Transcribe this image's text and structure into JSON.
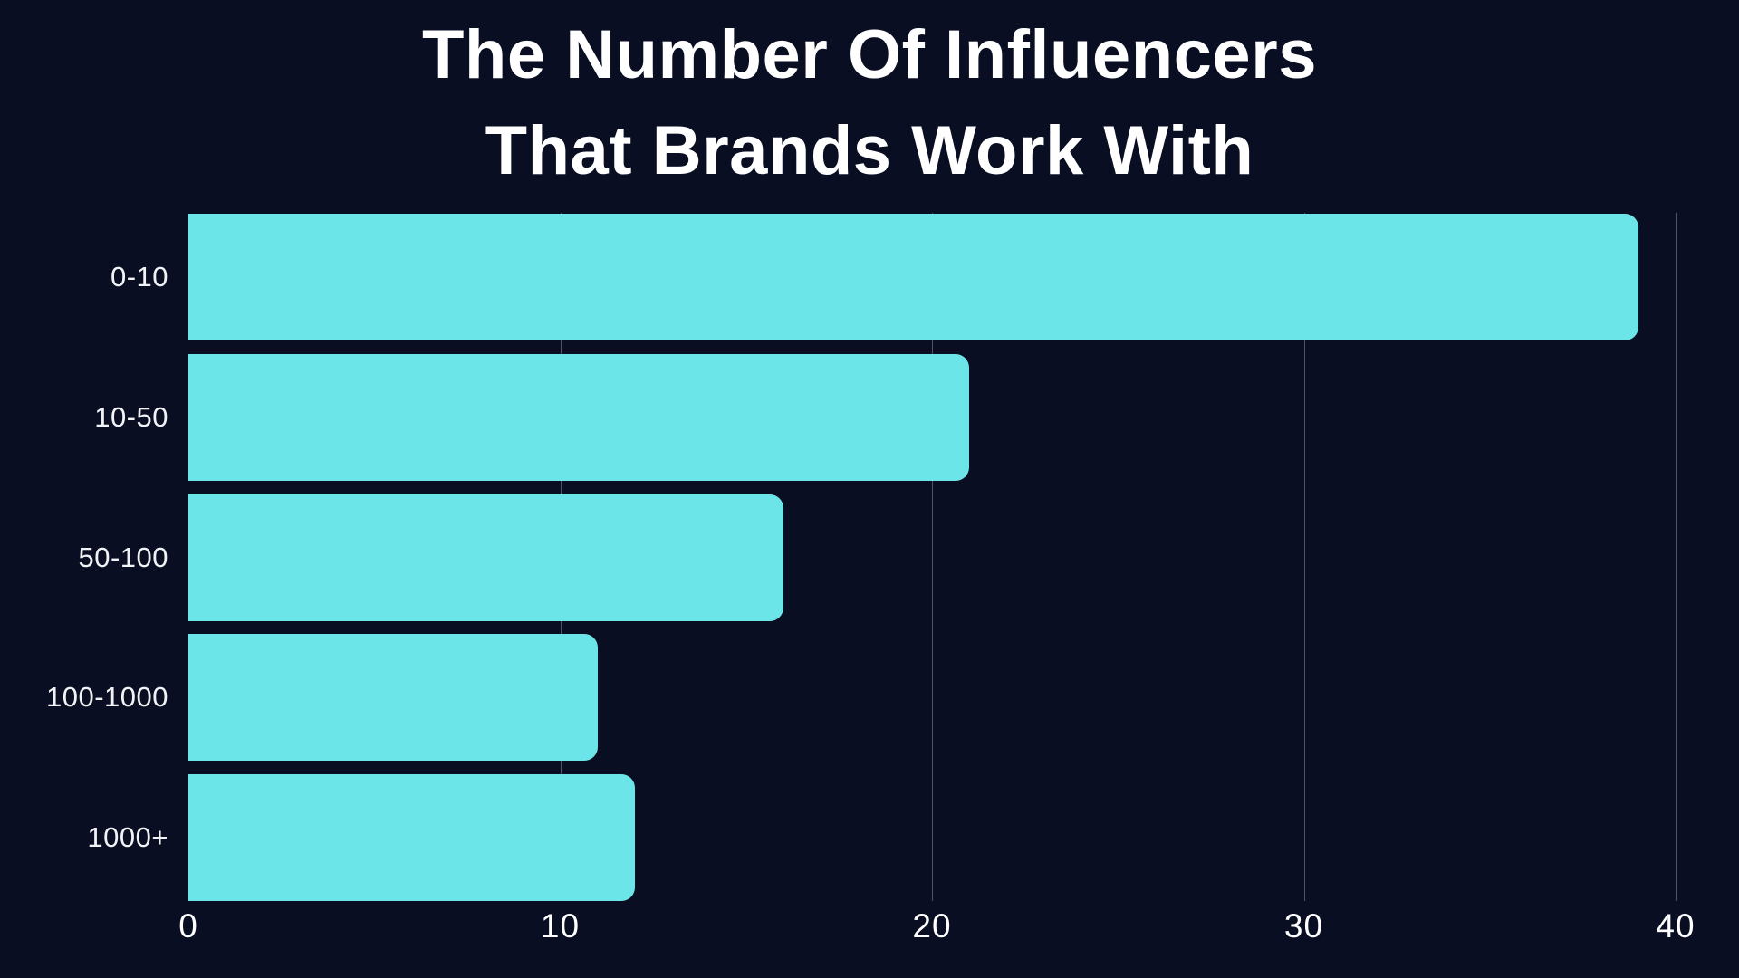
{
  "title": {
    "line1": "The Number Of Influencers",
    "line2": "That Brands Work With"
  },
  "chart_data": {
    "type": "bar",
    "orientation": "horizontal",
    "title": "The Number Of Influencers That Brands Work With",
    "categories": [
      "0-10",
      "10-50",
      "50-100",
      "100-1000",
      "1000+"
    ],
    "values": [
      39,
      21,
      16,
      11,
      12
    ],
    "x_ticks": [
      0,
      10,
      20,
      30,
      40
    ],
    "xlim": [
      0,
      40.7
    ],
    "ylabel": "",
    "xlabel": "",
    "grid": "vertical",
    "legend": false,
    "colors": {
      "background": "#0a0e23",
      "bar": "#6ce5e8",
      "text": "#ffffff",
      "gridline": "#878ca0"
    }
  }
}
